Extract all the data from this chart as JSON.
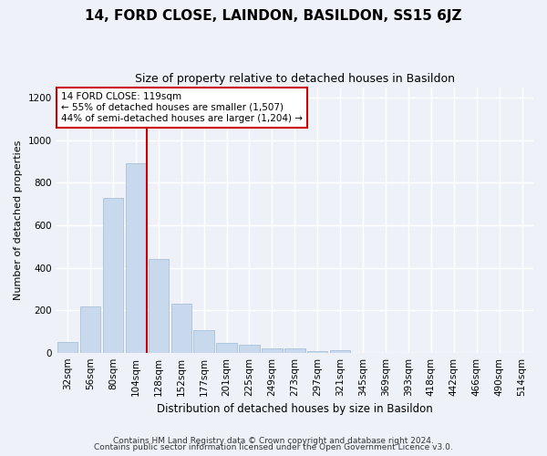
{
  "title": "14, FORD CLOSE, LAINDON, BASILDON, SS15 6JZ",
  "subtitle": "Size of property relative to detached houses in Basildon",
  "xlabel": "Distribution of detached houses by size in Basildon",
  "ylabel": "Number of detached properties",
  "categories": [
    "32sqm",
    "56sqm",
    "80sqm",
    "104sqm",
    "128sqm",
    "152sqm",
    "177sqm",
    "201sqm",
    "225sqm",
    "249sqm",
    "273sqm",
    "297sqm",
    "321sqm",
    "345sqm",
    "369sqm",
    "393sqm",
    "418sqm",
    "442sqm",
    "466sqm",
    "490sqm",
    "514sqm"
  ],
  "values": [
    50,
    217,
    730,
    890,
    440,
    232,
    108,
    47,
    37,
    22,
    20,
    8,
    10,
    0,
    0,
    0,
    0,
    0,
    0,
    0,
    0
  ],
  "bar_color": "#c8d9ed",
  "bar_edge_color": "#a8c0d8",
  "vline_color": "#cc0000",
  "vline_x_index": 4,
  "annotation_text": "14 FORD CLOSE: 119sqm\n← 55% of detached houses are smaller (1,507)\n44% of semi-detached houses are larger (1,204) →",
  "annotation_box_color": "white",
  "annotation_box_edge_color": "#cc0000",
  "ylim": [
    0,
    1250
  ],
  "yticks": [
    0,
    200,
    400,
    600,
    800,
    1000,
    1200
  ],
  "footer1": "Contains HM Land Registry data © Crown copyright and database right 2024.",
  "footer2": "Contains public sector information licensed under the Open Government Licence v3.0.",
  "bg_color": "#eef2f8",
  "plot_bg_color": "#eef2f8",
  "grid_color": "white",
  "title_fontsize": 11,
  "subtitle_fontsize": 9,
  "ylabel_fontsize": 8,
  "xlabel_fontsize": 8.5,
  "tick_fontsize": 7.5,
  "annotation_fontsize": 7.5,
  "footer_fontsize": 6.5
}
